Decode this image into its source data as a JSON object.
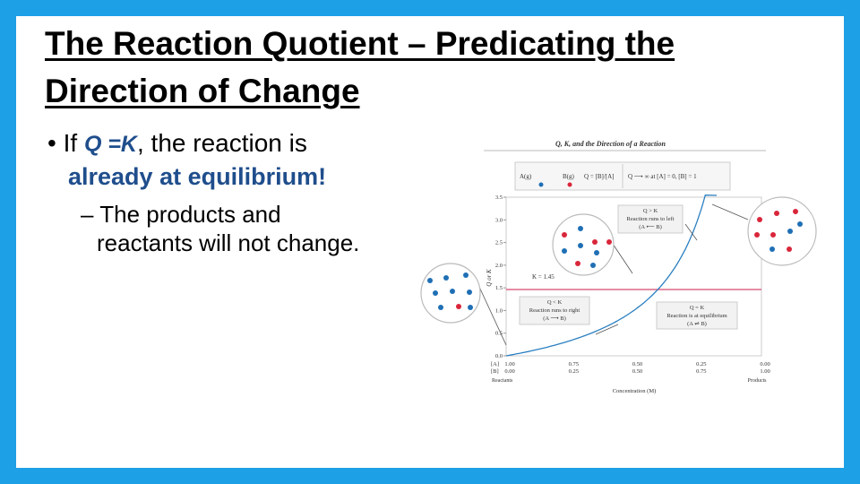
{
  "title_lines": [
    "The Reaction Quotient – Predicating the",
    "Direction of Change"
  ],
  "bullet": {
    "marker": "•",
    "lead": "If ",
    "q_eq_k": "Q =K",
    "rest": ", the reaction is",
    "line2": "already at equilibrium!"
  },
  "sub_bullet": {
    "dash": "–",
    "lines": [
      "The products and",
      "reactants will not change."
    ]
  },
  "figure": {
    "title": "Q, K, and the Direction of a Reaction",
    "legend": {
      "species_a": "A(g)",
      "species_b": "B(g)",
      "q_def": "Q = [B]/[A]",
      "limit": "Q ⟶ ∞ at [A] = 0, [B] = 1"
    },
    "y_axis_label": "Q or K",
    "y_tick_labels": [
      "0.0",
      "0.5",
      "1.0",
      "1.5",
      "2.0",
      "2.5",
      "3.0",
      "3.5"
    ],
    "k_label": "K = 1.45",
    "boxes": [
      {
        "head": "Q > K",
        "body": "Reaction runs to left",
        "arrow": "(A ⟵ B)"
      },
      {
        "head": "Q < K",
        "body": "Reaction runs to right",
        "arrow": "(A ⟶ B)"
      },
      {
        "head": "Q = K",
        "body": "Reaction is at equilibrium",
        "arrow": "(A ⇌ B)"
      }
    ],
    "a_row": {
      "label": "[A]",
      "values": [
        "1.00",
        "0.75",
        "0.50",
        "0.25",
        "0.00"
      ]
    },
    "b_row": {
      "label": "[B]",
      "values": [
        "0.00",
        "0.25",
        "0.50",
        "0.75",
        "1.00"
      ]
    },
    "x_left": "Reactants",
    "x_right": "Products",
    "x_axis_label": "Concentration (M)"
  }
}
